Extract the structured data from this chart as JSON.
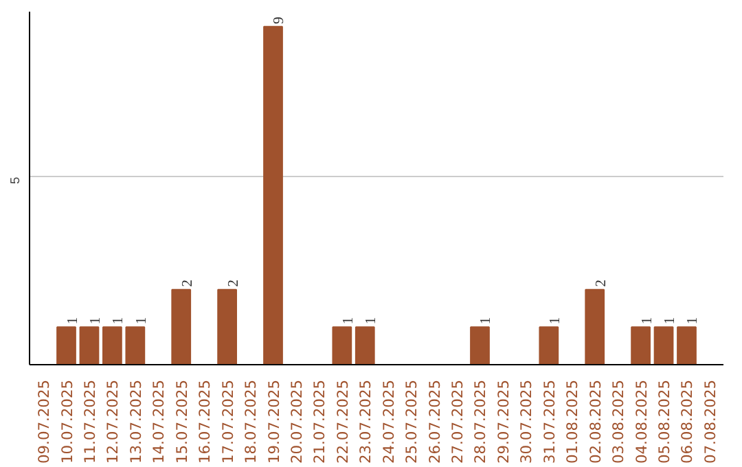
{
  "chart_data": {
    "type": "bar",
    "categories": [
      "09.07.2025",
      "10.07.2025",
      "11.07.2025",
      "12.07.2025",
      "13.07.2025",
      "14.07.2025",
      "15.07.2025",
      "16.07.2025",
      "17.07.2025",
      "18.07.2025",
      "19.07.2025",
      "20.07.2025",
      "21.07.2025",
      "22.07.2025",
      "23.07.2025",
      "24.07.2025",
      "25.07.2025",
      "26.07.2025",
      "27.07.2025",
      "28.07.2025",
      "29.07.2025",
      "30.07.2025",
      "31.07.2025",
      "01.08.2025",
      "02.08.2025",
      "03.08.2025",
      "04.08.2025",
      "05.08.2025",
      "06.08.2025",
      "07.08.2025"
    ],
    "values": [
      0,
      1,
      1,
      1,
      1,
      0,
      2,
      0,
      2,
      0,
      9,
      0,
      0,
      1,
      1,
      0,
      0,
      0,
      0,
      1,
      0,
      0,
      1,
      0,
      2,
      0,
      1,
      1,
      1,
      0
    ],
    "value_labels": [
      null,
      "1",
      "1",
      "1",
      "1",
      null,
      "2",
      null,
      "2",
      null,
      "9",
      null,
      null,
      "1",
      "1",
      null,
      null,
      null,
      null,
      "1",
      null,
      null,
      "1",
      null,
      "2",
      null,
      "1",
      "1",
      "1",
      null
    ],
    "color": "#a0522d",
    "ylim": [
      0,
      9.4
    ],
    "yticks": [
      5
    ],
    "grid": "y"
  }
}
